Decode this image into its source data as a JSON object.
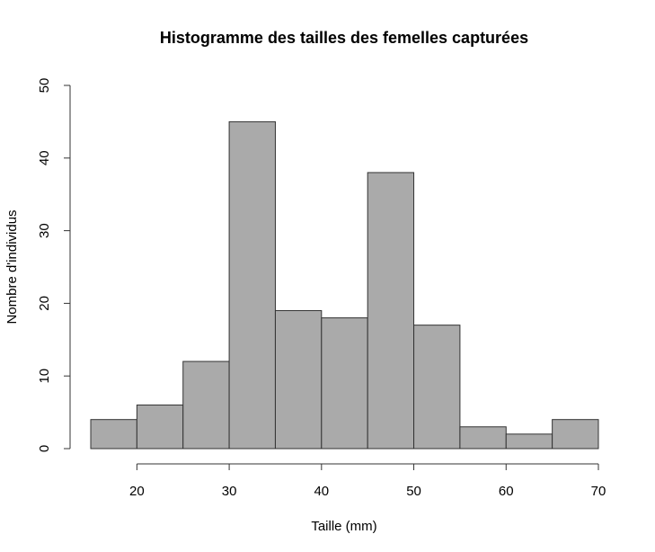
{
  "chart_data": {
    "type": "bar",
    "title": "Histogramme des tailles des femelles capturées",
    "xlabel": "Taille (mm)",
    "ylabel": "Nombre d'individus",
    "bins": [
      {
        "from": 15,
        "to": 20,
        "count": 4
      },
      {
        "from": 20,
        "to": 25,
        "count": 6
      },
      {
        "from": 25,
        "to": 30,
        "count": 12
      },
      {
        "from": 30,
        "to": 35,
        "count": 45
      },
      {
        "from": 35,
        "to": 40,
        "count": 19
      },
      {
        "from": 40,
        "to": 45,
        "count": 18
      },
      {
        "from": 45,
        "to": 50,
        "count": 38
      },
      {
        "from": 50,
        "to": 55,
        "count": 17
      },
      {
        "from": 55,
        "to": 60,
        "count": 3
      },
      {
        "from": 60,
        "to": 65,
        "count": 2
      },
      {
        "from": 65,
        "to": 70,
        "count": 4
      }
    ],
    "xticks": [
      20,
      30,
      40,
      50,
      60,
      70
    ],
    "yticks": [
      0,
      10,
      20,
      30,
      40,
      50
    ],
    "xlim": [
      15,
      70
    ],
    "ylim": [
      0,
      50
    ],
    "grid": false,
    "bar_color": "#aaaaaa",
    "edge_color": "#333333"
  }
}
